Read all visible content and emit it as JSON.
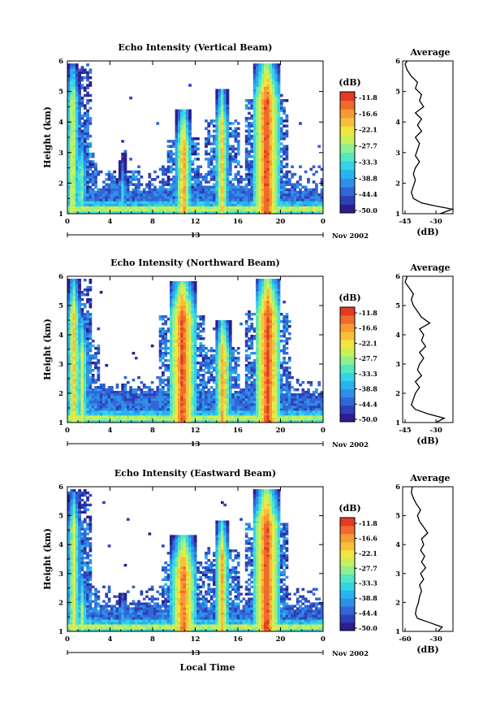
{
  "chart_data": [
    {
      "type": "heatmap",
      "title": "Echo Intensity (Vertical Beam)",
      "ylabel": "Height (km)",
      "xticks": [
        "0",
        "4",
        "8",
        "12",
        "16",
        "20",
        "0"
      ],
      "yticks": [
        "1",
        "2",
        "3",
        "4",
        "5",
        "6"
      ],
      "xlim": [
        0,
        24
      ],
      "ylim": [
        1,
        6
      ],
      "date_label": "13",
      "month_label": "Nov 2002",
      "colorbar": {
        "title": "(dB)",
        "labels": [
          "-11.8",
          "-16.6",
          "-22.1",
          "-27.7",
          "-33.3",
          "-38.8",
          "-44.4",
          "-50.0"
        ]
      },
      "bursts": [
        {
          "t": 0.5,
          "top": 5.9,
          "intensity": -22
        },
        {
          "t": 1.3,
          "top": 3.7,
          "intensity": -27
        },
        {
          "t": 5.2,
          "top": 3.0,
          "intensity": -33
        },
        {
          "t": 10.9,
          "top": 4.4,
          "intensity": -16
        },
        {
          "t": 14.5,
          "top": 5.1,
          "intensity": -20
        },
        {
          "t": 18.7,
          "top": 5.9,
          "intensity": -11.8
        }
      ],
      "average_profile": {
        "title": "Average",
        "xlabel": "(dB)",
        "xticks": [
          "-45",
          "-30"
        ],
        "yticks": [
          "1",
          "2",
          "3",
          "4",
          "5",
          "6"
        ],
        "height": [
          1.0,
          1.15,
          1.25,
          1.35,
          1.5,
          1.7,
          1.9,
          2.1,
          2.3,
          2.5,
          2.7,
          2.9,
          3.1,
          3.3,
          3.5,
          3.7,
          3.9,
          4.1,
          4.3,
          4.5,
          4.7,
          4.9,
          5.1,
          5.3,
          5.5,
          5.7,
          5.9,
          6.0
        ],
        "value_db": [
          -28,
          -22,
          -30,
          -37,
          -41,
          -42,
          -41,
          -40,
          -41,
          -40,
          -38,
          -40,
          -39,
          -38,
          -40,
          -37,
          -39,
          -37,
          -40,
          -36,
          -38,
          -37,
          -40,
          -39,
          -42,
          -44,
          -45,
          -44
        ]
      }
    },
    {
      "type": "heatmap",
      "title": "Echo Intensity (Northward Beam)",
      "ylabel": "Height (km)",
      "xticks": [
        "0",
        "4",
        "8",
        "12",
        "16",
        "20",
        "0"
      ],
      "yticks": [
        "1",
        "2",
        "3",
        "4",
        "5",
        "6"
      ],
      "xlim": [
        0,
        24
      ],
      "ylim": [
        1,
        6
      ],
      "date_label": "13",
      "month_label": "Nov 2002",
      "colorbar": {
        "title": "(dB)",
        "labels": [
          "-11.8",
          "-16.6",
          "-22.1",
          "-27.7",
          "-33.3",
          "-38.8",
          "-44.4",
          "-50.0"
        ]
      },
      "bursts": [
        {
          "t": 0.6,
          "top": 5.9,
          "intensity": -20
        },
        {
          "t": 1.4,
          "top": 4.6,
          "intensity": -24
        },
        {
          "t": 5.3,
          "top": 2.3,
          "intensity": -30
        },
        {
          "t": 10.8,
          "top": 5.8,
          "intensity": -12
        },
        {
          "t": 14.6,
          "top": 4.5,
          "intensity": -16
        },
        {
          "t": 18.8,
          "top": 5.9,
          "intensity": -11.8
        }
      ],
      "average_profile": {
        "title": "Average",
        "xlabel": "(dB)",
        "xticks": [
          "-45",
          "-30"
        ],
        "yticks": [
          "1",
          "2",
          "3",
          "4",
          "5",
          "6"
        ],
        "height": [
          1.0,
          1.15,
          1.3,
          1.45,
          1.6,
          1.8,
          2.0,
          2.2,
          2.4,
          2.6,
          2.8,
          3.0,
          3.2,
          3.4,
          3.6,
          3.8,
          4.0,
          4.2,
          4.4,
          4.6,
          4.8,
          5.0,
          5.2,
          5.4,
          5.6,
          5.8,
          6.0
        ],
        "value_db": [
          -30,
          -26,
          -34,
          -40,
          -42,
          -41,
          -40,
          -38,
          -40,
          -37,
          -39,
          -38,
          -36,
          -38,
          -35,
          -37,
          -36,
          -38,
          -33,
          -37,
          -39,
          -41,
          -42,
          -41,
          -43,
          -45,
          -44
        ]
      }
    },
    {
      "type": "heatmap",
      "title": "Echo Intensity (Eastward Beam)",
      "ylabel": "Height (km)",
      "xlabel": "Local Time",
      "xticks": [
        "0",
        "4",
        "8",
        "12",
        "16",
        "20",
        "0"
      ],
      "yticks": [
        "1",
        "2",
        "3",
        "4",
        "5",
        "6"
      ],
      "xlim": [
        0,
        24
      ],
      "ylim": [
        1,
        6
      ],
      "date_label": "13",
      "month_label": "Nov 2002",
      "colorbar": {
        "title": "(dB)",
        "labels": [
          "-11.8",
          "-16.6",
          "-22.1",
          "-27.7",
          "-33.3",
          "-38.8",
          "-44.4",
          "-50.0"
        ]
      },
      "bursts": [
        {
          "t": 0.6,
          "top": 5.8,
          "intensity": -22
        },
        {
          "t": 1.4,
          "top": 3.0,
          "intensity": -26
        },
        {
          "t": 5.2,
          "top": 2.3,
          "intensity": -30
        },
        {
          "t": 10.9,
          "top": 4.3,
          "intensity": -14
        },
        {
          "t": 14.5,
          "top": 4.8,
          "intensity": -18
        },
        {
          "t": 18.7,
          "top": 5.9,
          "intensity": -11.8
        }
      ],
      "average_profile": {
        "title": "Average",
        "xlabel": "(dB)",
        "xticks": [
          "-60",
          "-30"
        ],
        "yticks": [
          "1",
          "2",
          "3",
          "4",
          "5",
          "6"
        ],
        "height": [
          1.0,
          1.15,
          1.3,
          1.45,
          1.6,
          1.8,
          2.0,
          2.2,
          2.4,
          2.6,
          2.8,
          3.0,
          3.2,
          3.4,
          3.6,
          3.8,
          4.0,
          4.2,
          4.4,
          4.6,
          4.8,
          5.0,
          5.2,
          5.4,
          5.6,
          5.8,
          6.0
        ],
        "value_db": [
          -28,
          -24,
          -36,
          -48,
          -50,
          -49,
          -47,
          -46,
          -44,
          -46,
          -42,
          -45,
          -40,
          -44,
          -41,
          -45,
          -42,
          -44,
          -38,
          -42,
          -46,
          -48,
          -45,
          -49,
          -52,
          -54,
          -53
        ]
      }
    }
  ]
}
